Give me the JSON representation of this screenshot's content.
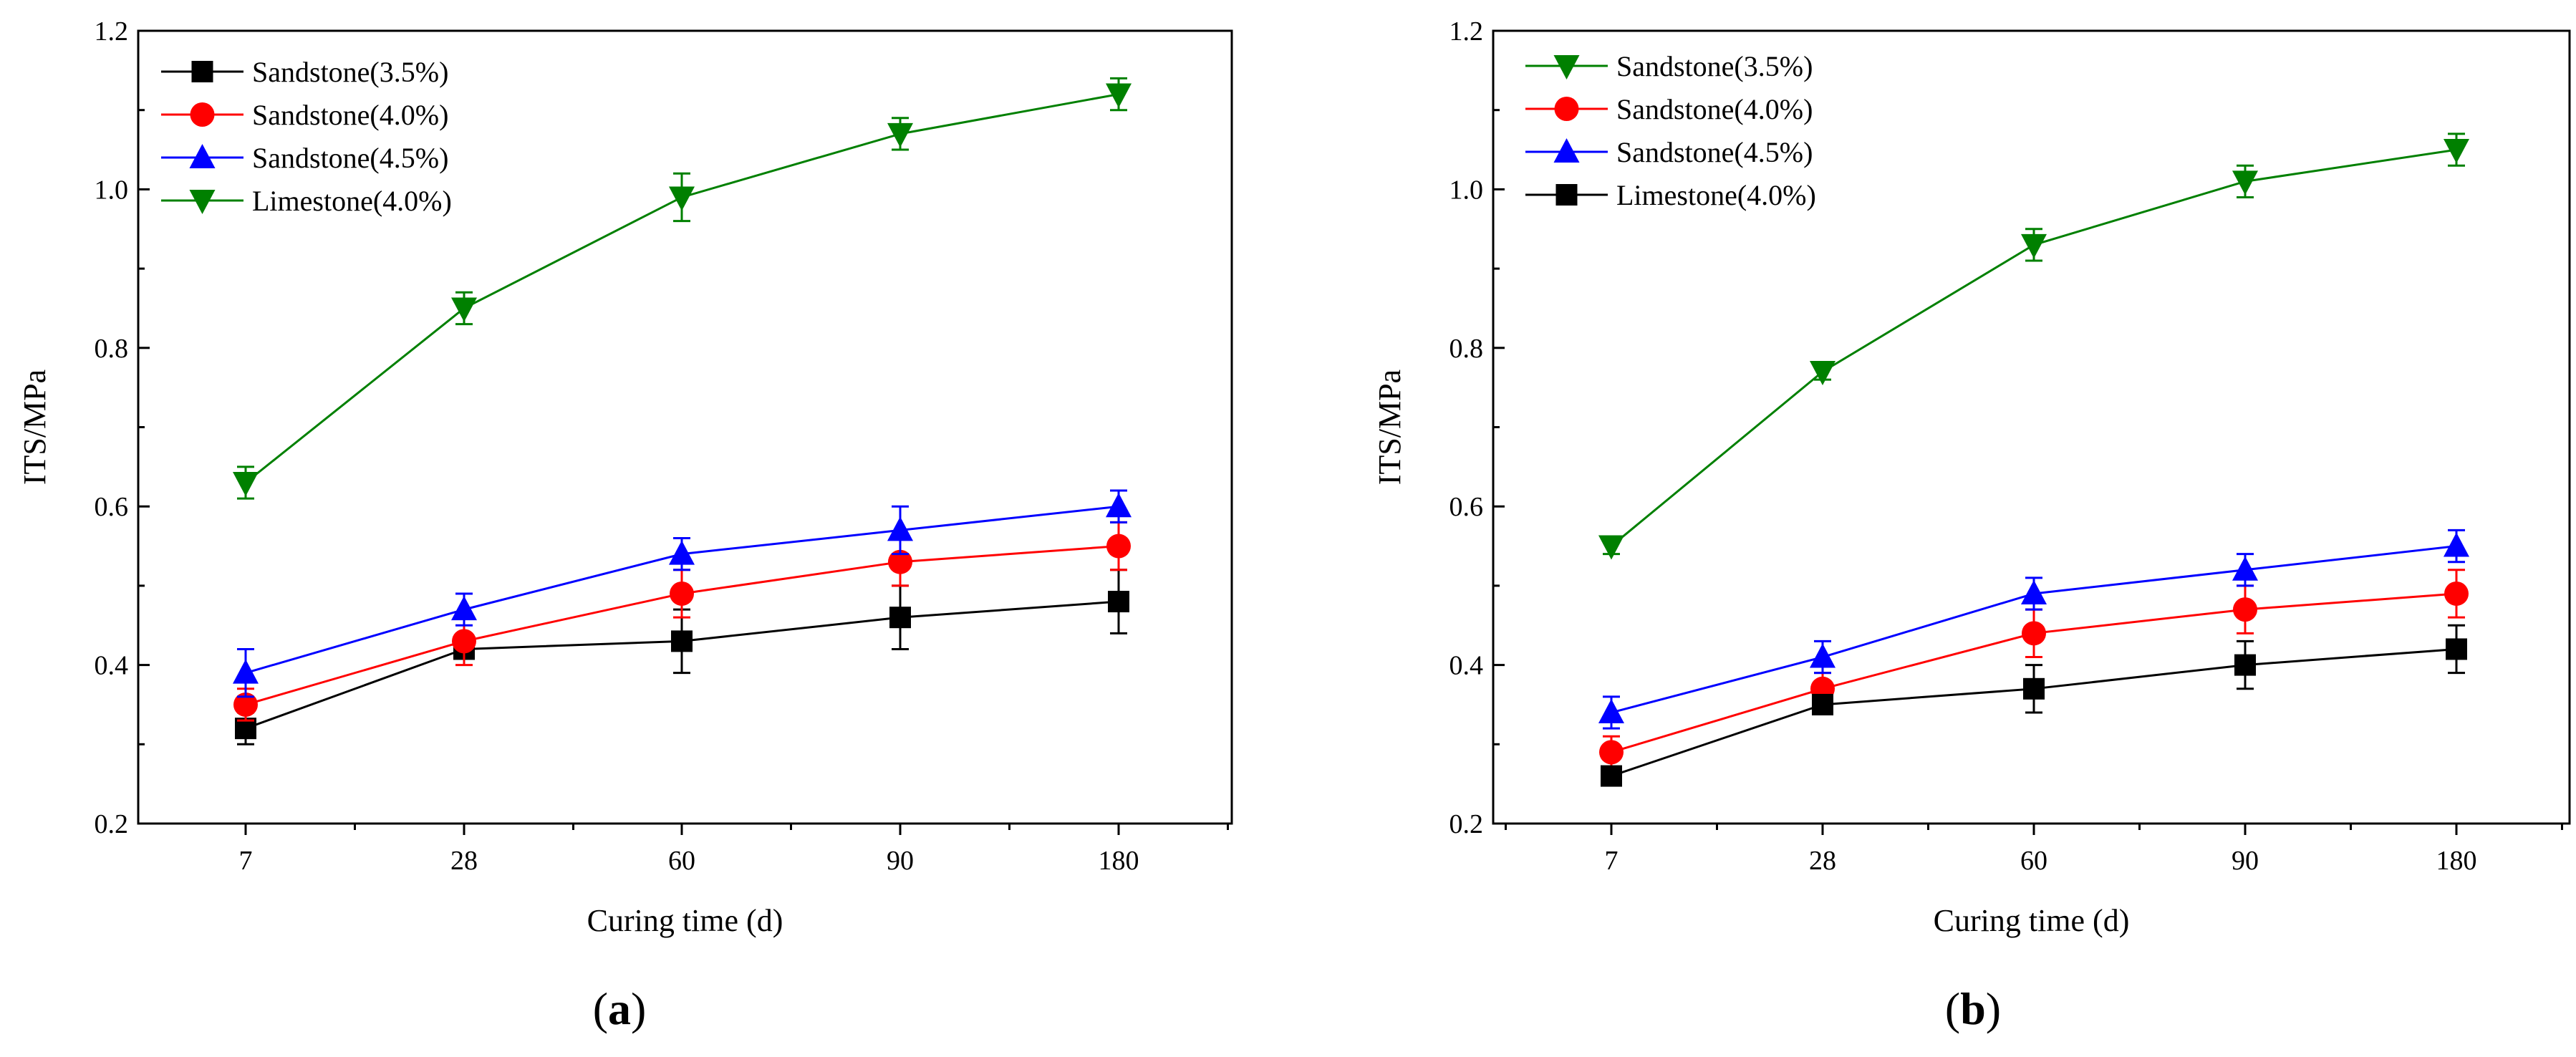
{
  "figure_labels": [
    "a",
    "b"
  ],
  "chart_data": [
    {
      "type": "line",
      "panel": "a",
      "xlabel": "Curing time (d)",
      "ylabel": "ITS/MPa",
      "categories": [
        "7",
        "28",
        "60",
        "90",
        "180"
      ],
      "ylim": [
        0.2,
        1.2
      ],
      "yticks": [
        "0.2",
        "0.4",
        "0.6",
        "0.8",
        "1.0",
        "1.2"
      ],
      "legend_position": "top-left",
      "series": [
        {
          "name": "Sandstone(3.5%)",
          "color": "#000000",
          "marker": "square",
          "values": [
            0.32,
            0.42,
            0.43,
            0.46,
            0.48
          ],
          "errors": [
            0.02,
            0.01,
            0.04,
            0.04,
            0.04
          ]
        },
        {
          "name": "Sandstone(4.0%)",
          "color": "#ff0000",
          "marker": "circle",
          "values": [
            0.35,
            0.43,
            0.49,
            0.53,
            0.55
          ],
          "errors": [
            0.02,
            0.03,
            0.03,
            0.03,
            0.03
          ]
        },
        {
          "name": "Sandstone(4.5%)",
          "color": "#0000ff",
          "marker": "triangle-up",
          "values": [
            0.39,
            0.47,
            0.54,
            0.57,
            0.6
          ],
          "errors": [
            0.03,
            0.02,
            0.02,
            0.03,
            0.02
          ]
        },
        {
          "name": "Limestone(4.0%)",
          "color": "#008000",
          "marker": "triangle-down",
          "values": [
            0.63,
            0.85,
            0.99,
            1.07,
            1.12
          ],
          "errors": [
            0.02,
            0.02,
            0.03,
            0.02,
            0.02
          ]
        }
      ]
    },
    {
      "type": "line",
      "panel": "b",
      "xlabel": "Curing time (d)",
      "ylabel": "ITS/MPa",
      "categories": [
        "7",
        "28",
        "60",
        "90",
        "180"
      ],
      "ylim": [
        0.2,
        1.2
      ],
      "yticks": [
        "0.2",
        "0.4",
        "0.6",
        "0.8",
        "1.0",
        "1.2"
      ],
      "legend_position": "top-left",
      "series": [
        {
          "name": "Sandstone(3.5%)",
          "color": "#008000",
          "marker": "triangle-down",
          "values": [
            0.55,
            0.77,
            0.93,
            1.01,
            1.05
          ],
          "errors": [
            0.01,
            0.01,
            0.02,
            0.02,
            0.02
          ]
        },
        {
          "name": "Sandstone(4.0%)",
          "color": "#ff0000",
          "marker": "circle",
          "values": [
            0.29,
            0.37,
            0.44,
            0.47,
            0.49
          ],
          "errors": [
            0.02,
            0.02,
            0.03,
            0.03,
            0.03
          ]
        },
        {
          "name": "Sandstone(4.5%)",
          "color": "#0000ff",
          "marker": "triangle-up",
          "values": [
            0.34,
            0.41,
            0.49,
            0.52,
            0.55
          ],
          "errors": [
            0.02,
            0.02,
            0.02,
            0.02,
            0.02
          ]
        },
        {
          "name": "Limestone(4.0%)",
          "color": "#000000",
          "marker": "square",
          "values": [
            0.26,
            0.35,
            0.37,
            0.4,
            0.42
          ],
          "errors": [
            0.01,
            0.01,
            0.03,
            0.03,
            0.03
          ]
        }
      ]
    }
  ]
}
